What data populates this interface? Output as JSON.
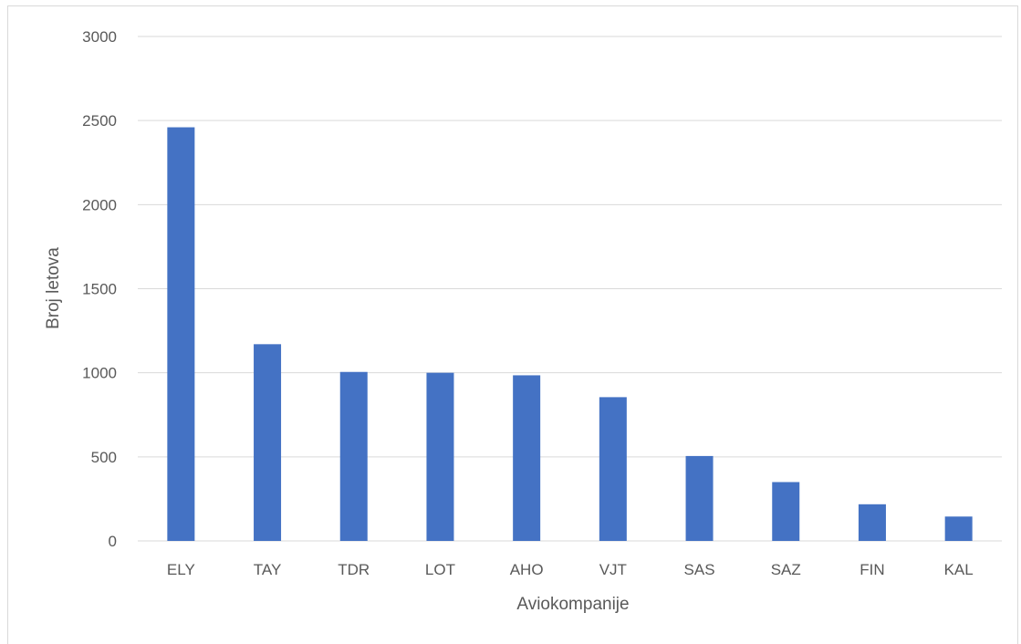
{
  "chart_data": {
    "type": "bar",
    "categories": [
      "ELY",
      "TAY",
      "TDR",
      "LOT",
      "AHO",
      "VJT",
      "SAS",
      "SAZ",
      "FIN",
      "KAL"
    ],
    "values": [
      2460,
      1170,
      1005,
      1000,
      985,
      855,
      505,
      350,
      218,
      145
    ],
    "title": "",
    "xlabel": "Aviokompanije",
    "ylabel": "Broj letova",
    "ylim": [
      0,
      3000
    ],
    "yticks": [
      "0",
      "500",
      "1000",
      "1500",
      "2000",
      "2500",
      "3000"
    ],
    "grid": true,
    "legend": "none",
    "colors": {
      "bar": "#4472c4",
      "grid": "#d9d9d9",
      "text": "#595959"
    }
  }
}
